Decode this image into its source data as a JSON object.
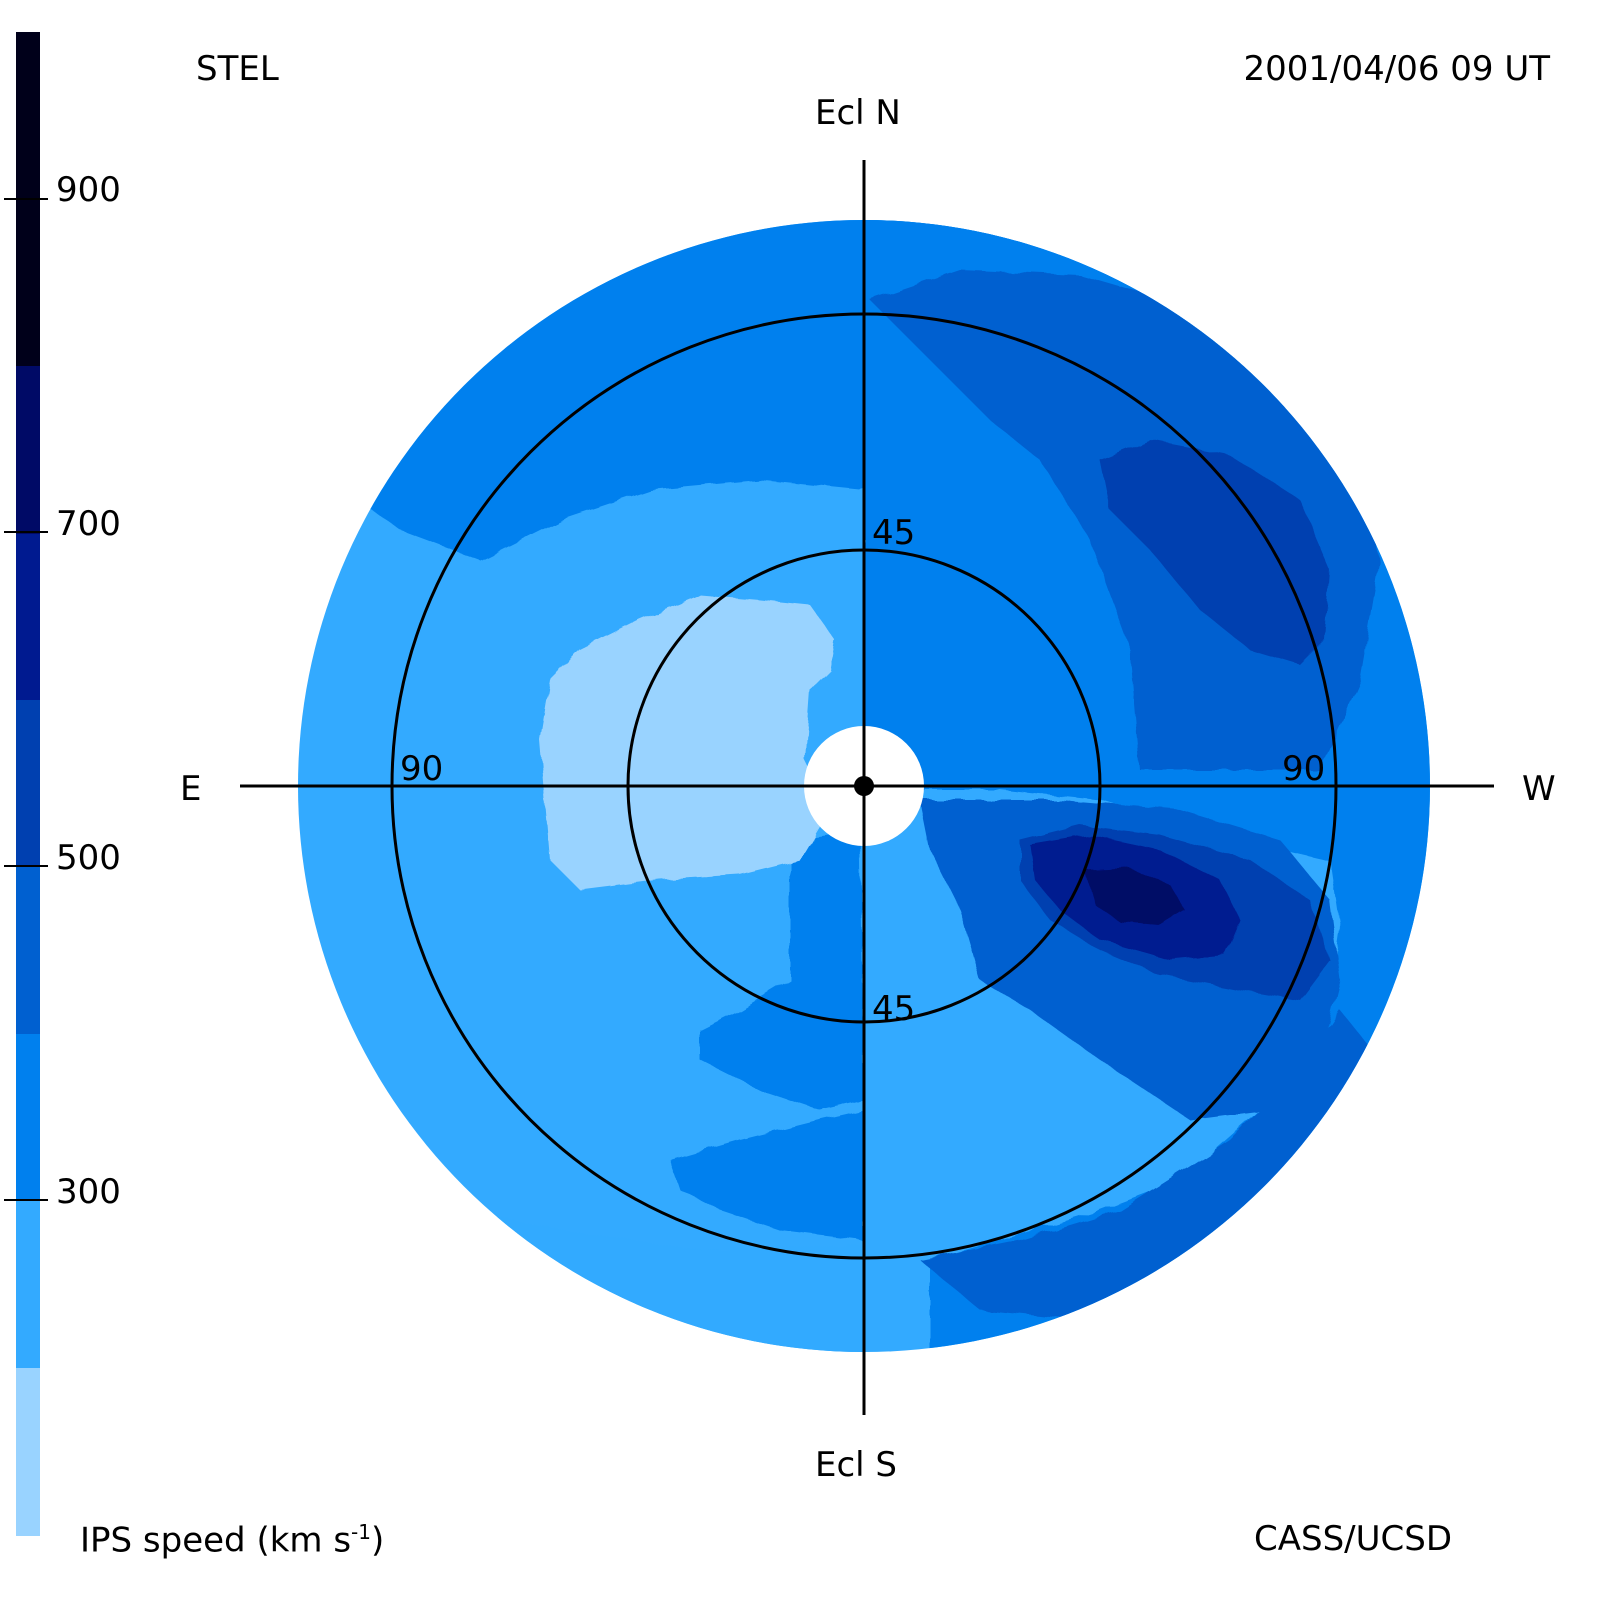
{
  "header": {
    "left_label": "STEL",
    "right_label": "2001/04/06 09 UT"
  },
  "footer": {
    "colorbar_title": "IPS speed (km s",
    "colorbar_title_sup": "-1",
    "colorbar_title_end": ")",
    "credit": "CASS/UCSD"
  },
  "map": {
    "top_label": "Ecl N",
    "bottom_label": "Ecl S",
    "left_label": "E",
    "right_label": "W",
    "ring_labels": {
      "inner_top": "45",
      "inner_bottom": "45",
      "outer_left": "90",
      "outer_right": "90"
    }
  },
  "colorbar": {
    "colors": [
      "#99d3ff",
      "#33aaff",
      "#0080ee",
      "#0060d0",
      "#0040b0",
      "#001a90",
      "#000a66",
      "#00001a"
    ],
    "tick_labels": [
      "300",
      "500",
      "700",
      "900"
    ]
  }
}
